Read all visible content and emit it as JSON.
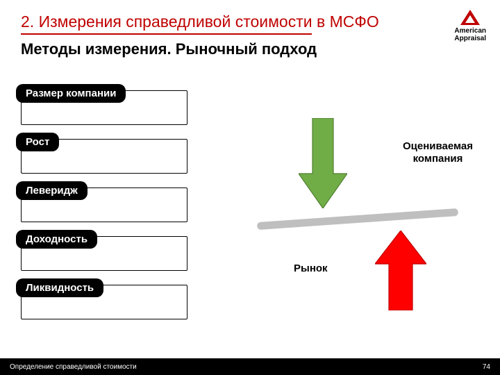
{
  "header": {
    "title": "2. Измерения справедливой стоимости в МСФО",
    "subtitle": "Методы измерения. Рыночный подход"
  },
  "logo": {
    "line1": "American",
    "line2": "Appraisal"
  },
  "factors": [
    {
      "label": "Размер компании"
    },
    {
      "label": "Рост"
    },
    {
      "label": "Леверидж"
    },
    {
      "label": "Доходность"
    },
    {
      "label": "Ликвидность"
    }
  ],
  "diagram": {
    "type": "infographic",
    "label_company": "Оцениваемая\nкомпания",
    "label_market": "Рынок",
    "arrow_down_color": "#70ad47",
    "arrow_down_stroke": "#507e32",
    "arrow_up_color": "#ff0000",
    "arrow_up_stroke": "#be0000",
    "bar_color": "#bfbfbf"
  },
  "footer": {
    "left": "Определение справедливой стоимости",
    "page": "74"
  },
  "colors": {
    "accent": "#c00000",
    "pill_bg": "#000000",
    "pill_text": "#ffffff"
  }
}
